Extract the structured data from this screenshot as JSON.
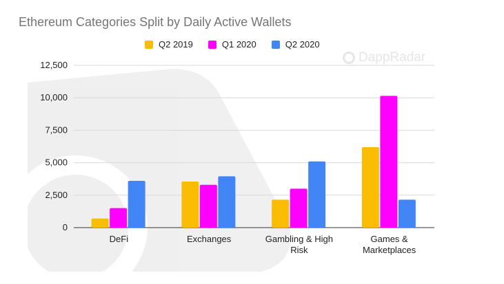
{
  "chart_data": {
    "type": "bar",
    "title": "Ethereum Categories Split by Daily Active Wallets",
    "categories": [
      "DeFi",
      "Exchanges",
      "Gambling & High Risk",
      "Games & Marketplaces"
    ],
    "category_lines": [
      [
        "DeFi"
      ],
      [
        "Exchanges"
      ],
      [
        "Gambling & High",
        "Risk"
      ],
      [
        "Games &",
        "Marketplaces"
      ]
    ],
    "series": [
      {
        "name": "Q2 2019",
        "color": "#fbbc04",
        "values": [
          700,
          3550,
          2150,
          6200
        ]
      },
      {
        "name": "Q1 2020",
        "color": "#ff00ff",
        "values": [
          1500,
          3300,
          3000,
          10150
        ]
      },
      {
        "name": "Q2 2020",
        "color": "#4285f4",
        "values": [
          3600,
          3950,
          5100,
          2150
        ]
      }
    ],
    "yticks": [
      0,
      2500,
      5000,
      7500,
      10000,
      12500
    ],
    "ytick_labels": [
      "0",
      "2,500",
      "5,000",
      "7,500",
      "10,000",
      "12,500"
    ],
    "ylim": [
      0,
      12500
    ],
    "xlabel": "",
    "ylabel": "",
    "grid": true,
    "legend_position": "top"
  },
  "watermark": "DappRadar"
}
